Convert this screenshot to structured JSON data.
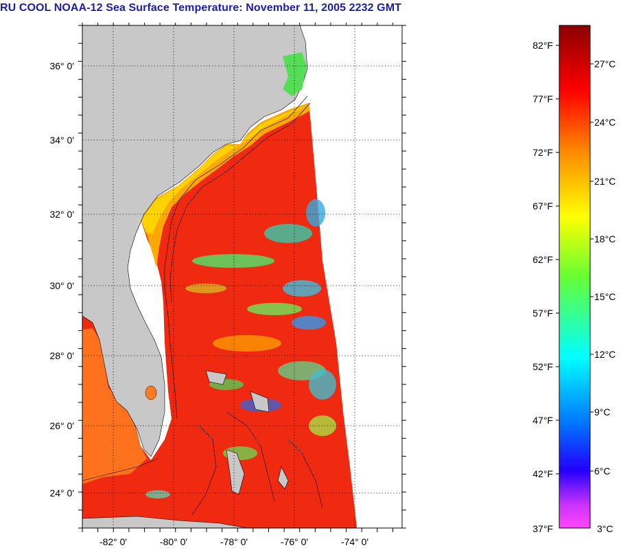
{
  "title": "RU COOL  NOAA-12  Sea Surface Temperature:  November 11, 2005 2232 GMT",
  "map": {
    "lon_ticks": [
      -82,
      -80,
      -78,
      -76,
      -74
    ],
    "lat_ticks": [
      24,
      26,
      28,
      30,
      32,
      34,
      36
    ],
    "lon_labels": [
      "-82° 0'",
      "-80° 0'",
      "-78° 0'",
      "-76° 0'",
      "-74° 0'"
    ],
    "lat_labels": [
      "24° 0'",
      "26° 0'",
      "28° 0'",
      "30° 0'",
      "32° 0'",
      "34° 0'",
      "36° 0'"
    ],
    "lon_range": [
      -83.0,
      -72.7
    ],
    "lat_range": [
      23.0,
      37.0
    ],
    "land_color": "#c8c8c8",
    "grid": "dotted"
  },
  "colorbar": {
    "fahrenheit_labels": [
      "82°F",
      "77°F",
      "72°F",
      "67°F",
      "62°F",
      "57°F",
      "52°F",
      "47°F",
      "42°F",
      "37°F"
    ],
    "celsius_labels": [
      "27°C",
      "24°C",
      "21°C",
      "18°C",
      "15°C",
      "12°C",
      "9°C",
      "6°C",
      "3°C"
    ],
    "stops": [
      "#8b0000",
      "#ff0000",
      "#ff7700",
      "#ffff00",
      "#66ff33",
      "#00ffff",
      "#0088ff",
      "#0000ff",
      "#9900ff",
      "#ff44ff"
    ]
  }
}
